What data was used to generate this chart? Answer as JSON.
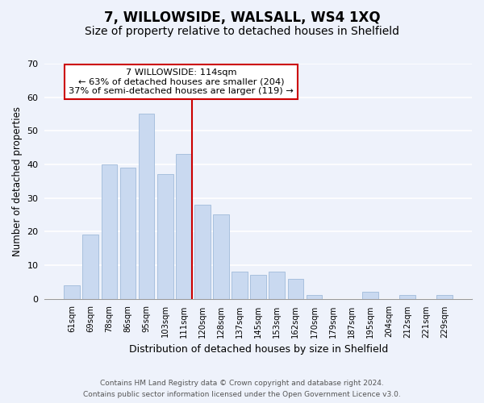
{
  "title": "7, WILLOWSIDE, WALSALL, WS4 1XQ",
  "subtitle": "Size of property relative to detached houses in Shelfield",
  "xlabel": "Distribution of detached houses by size in Shelfield",
  "ylabel": "Number of detached properties",
  "bar_labels": [
    "61sqm",
    "69sqm",
    "78sqm",
    "86sqm",
    "95sqm",
    "103sqm",
    "111sqm",
    "120sqm",
    "128sqm",
    "137sqm",
    "145sqm",
    "153sqm",
    "162sqm",
    "170sqm",
    "179sqm",
    "187sqm",
    "195sqm",
    "204sqm",
    "212sqm",
    "221sqm",
    "229sqm"
  ],
  "bar_values": [
    4,
    19,
    40,
    39,
    55,
    37,
    43,
    28,
    25,
    8,
    7,
    8,
    6,
    1,
    0,
    0,
    2,
    0,
    1,
    0,
    1
  ],
  "bar_color": "#c9d9f0",
  "bar_edge_color": "#a8c0de",
  "highlight_index": 6,
  "vline_color": "#cc0000",
  "ylim": [
    0,
    70
  ],
  "yticks": [
    0,
    10,
    20,
    30,
    40,
    50,
    60,
    70
  ],
  "annotation_title": "7 WILLOWSIDE: 114sqm",
  "annotation_line1": "← 63% of detached houses are smaller (204)",
  "annotation_line2": "37% of semi-detached houses are larger (119) →",
  "annotation_box_color": "#ffffff",
  "annotation_box_edge": "#cc0000",
  "footer1": "Contains HM Land Registry data © Crown copyright and database right 2024.",
  "footer2": "Contains public sector information licensed under the Open Government Licence v3.0.",
  "background_color": "#eef2fb",
  "grid_color": "#ffffff",
  "title_fontsize": 12,
  "subtitle_fontsize": 10
}
